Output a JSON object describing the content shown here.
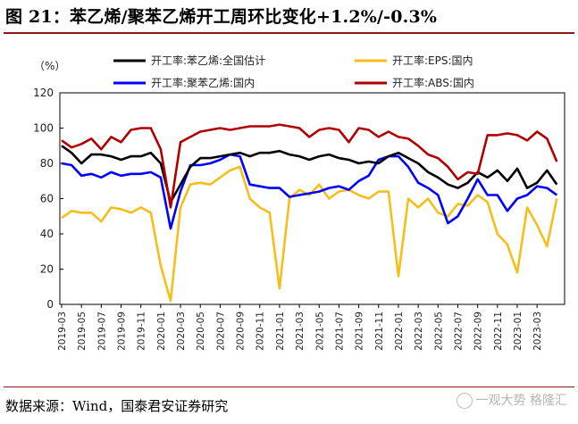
{
  "header": {
    "title": "图 21：苯乙烯/聚苯乙烯开工周环比变化+1.2%/-0.3%"
  },
  "footer": {
    "source": "数据来源：Wind，国泰君安证券研究",
    "watermark": "一观大势  格隆汇"
  },
  "chart_data": {
    "type": "line",
    "title": "图 21：苯乙烯/聚苯乙烯开工周环比变化+1.2%/-0.3%",
    "ylabel": "（%）",
    "xlabel": "",
    "ylim": [
      0,
      120
    ],
    "yticks": [
      "0",
      "20",
      "40",
      "60",
      "80",
      "100",
      "120"
    ],
    "xrange": [
      "2019-03",
      "2023-05"
    ],
    "xticks": [
      "2019-03",
      "2019-05",
      "2019-07",
      "2019-09",
      "2019-11",
      "2020-01",
      "2020-03",
      "2020-05",
      "2020-07",
      "2020-09",
      "2020-11",
      "2021-01",
      "2021-03",
      "2021-05",
      "2021-07",
      "2021-09",
      "2021-11",
      "2022-01",
      "2022-03",
      "2022-05",
      "2022-07",
      "2022-09",
      "2022-11",
      "2023-01",
      "2023-03"
    ],
    "grid": false,
    "legend_position": "top",
    "series": [
      {
        "name": "开工率:苯乙烯:全国估计",
        "color": "#000000",
        "points": [
          [
            "2019-03",
            90
          ],
          [
            "2019-04",
            86
          ],
          [
            "2019-05",
            80
          ],
          [
            "2019-06",
            85
          ],
          [
            "2019-07",
            85
          ],
          [
            "2019-08",
            84
          ],
          [
            "2019-09",
            82
          ],
          [
            "2019-10",
            84
          ],
          [
            "2019-11",
            84
          ],
          [
            "2019-12",
            86
          ],
          [
            "2020-01",
            80
          ],
          [
            "2020-02",
            58
          ],
          [
            "2020-03",
            68
          ],
          [
            "2020-04",
            78
          ],
          [
            "2020-05",
            83
          ],
          [
            "2020-06",
            83
          ],
          [
            "2020-07",
            84
          ],
          [
            "2020-08",
            85
          ],
          [
            "2020-09",
            86
          ],
          [
            "2020-10",
            84
          ],
          [
            "2020-11",
            86
          ],
          [
            "2020-12",
            86
          ],
          [
            "2021-01",
            87
          ],
          [
            "2021-02",
            85
          ],
          [
            "2021-03",
            84
          ],
          [
            "2021-04",
            82
          ],
          [
            "2021-05",
            84
          ],
          [
            "2021-06",
            85
          ],
          [
            "2021-07",
            83
          ],
          [
            "2021-08",
            82
          ],
          [
            "2021-09",
            80
          ],
          [
            "2021-10",
            81
          ],
          [
            "2021-11",
            80
          ],
          [
            "2021-12",
            84
          ],
          [
            "2022-01",
            86
          ],
          [
            "2022-02",
            83
          ],
          [
            "2022-03",
            80
          ],
          [
            "2022-04",
            75
          ],
          [
            "2022-05",
            72
          ],
          [
            "2022-06",
            68
          ],
          [
            "2022-07",
            66
          ],
          [
            "2022-08",
            69
          ],
          [
            "2022-09",
            75
          ],
          [
            "2022-10",
            72
          ],
          [
            "2022-11",
            76
          ],
          [
            "2022-12",
            70
          ],
          [
            "2023-01",
            77
          ],
          [
            "2023-02",
            66
          ],
          [
            "2023-03",
            69
          ],
          [
            "2023-04",
            76
          ],
          [
            "2023-05",
            68
          ]
        ]
      },
      {
        "name": "开工率:EPS:国内",
        "color": "#f4bf1a",
        "points": [
          [
            "2019-03",
            49
          ],
          [
            "2019-04",
            53
          ],
          [
            "2019-05",
            52
          ],
          [
            "2019-06",
            52
          ],
          [
            "2019-07",
            47
          ],
          [
            "2019-08",
            55
          ],
          [
            "2019-09",
            54
          ],
          [
            "2019-10",
            52
          ],
          [
            "2019-11",
            55
          ],
          [
            "2019-12",
            52
          ],
          [
            "2020-01",
            22
          ],
          [
            "2020-02",
            2
          ],
          [
            "2020-03",
            55
          ],
          [
            "2020-04",
            68
          ],
          [
            "2020-05",
            69
          ],
          [
            "2020-06",
            68
          ],
          [
            "2020-07",
            72
          ],
          [
            "2020-08",
            76
          ],
          [
            "2020-09",
            78
          ],
          [
            "2020-10",
            60
          ],
          [
            "2020-11",
            55
          ],
          [
            "2020-12",
            52
          ],
          [
            "2021-01",
            9
          ],
          [
            "2021-02",
            60
          ],
          [
            "2021-03",
            65
          ],
          [
            "2021-04",
            62
          ],
          [
            "2021-05",
            68
          ],
          [
            "2021-06",
            60
          ],
          [
            "2021-07",
            64
          ],
          [
            "2021-08",
            65
          ],
          [
            "2021-09",
            62
          ],
          [
            "2021-10",
            60
          ],
          [
            "2021-11",
            64
          ],
          [
            "2021-12",
            64
          ],
          [
            "2022-01",
            16
          ],
          [
            "2022-02",
            60
          ],
          [
            "2022-03",
            55
          ],
          [
            "2022-04",
            60
          ],
          [
            "2022-05",
            52
          ],
          [
            "2022-06",
            50
          ],
          [
            "2022-07",
            57
          ],
          [
            "2022-08",
            56
          ],
          [
            "2022-09",
            62
          ],
          [
            "2022-10",
            58
          ],
          [
            "2022-11",
            40
          ],
          [
            "2022-12",
            34
          ],
          [
            "2023-01",
            18
          ],
          [
            "2023-02",
            55
          ],
          [
            "2023-03",
            45
          ],
          [
            "2023-04",
            33
          ],
          [
            "2023-05",
            60
          ]
        ]
      },
      {
        "name": "开工率:聚苯乙烯:国内",
        "color": "#0000ff",
        "points": [
          [
            "2019-03",
            80
          ],
          [
            "2019-04",
            79
          ],
          [
            "2019-05",
            73
          ],
          [
            "2019-06",
            74
          ],
          [
            "2019-07",
            72
          ],
          [
            "2019-08",
            75
          ],
          [
            "2019-09",
            73
          ],
          [
            "2019-10",
            74
          ],
          [
            "2019-11",
            74
          ],
          [
            "2019-12",
            75
          ],
          [
            "2020-01",
            72
          ],
          [
            "2020-02",
            43
          ],
          [
            "2020-03",
            64
          ],
          [
            "2020-04",
            79
          ],
          [
            "2020-05",
            79
          ],
          [
            "2020-06",
            80
          ],
          [
            "2020-07",
            82
          ],
          [
            "2020-08",
            85
          ],
          [
            "2020-09",
            84
          ],
          [
            "2020-10",
            68
          ],
          [
            "2020-11",
            67
          ],
          [
            "2020-12",
            66
          ],
          [
            "2021-01",
            66
          ],
          [
            "2021-02",
            61
          ],
          [
            "2021-03",
            62
          ],
          [
            "2021-04",
            63
          ],
          [
            "2021-05",
            64
          ],
          [
            "2021-06",
            66
          ],
          [
            "2021-07",
            67
          ],
          [
            "2021-08",
            65
          ],
          [
            "2021-09",
            70
          ],
          [
            "2021-10",
            73
          ],
          [
            "2021-11",
            82
          ],
          [
            "2021-12",
            84
          ],
          [
            "2022-01",
            84
          ],
          [
            "2022-02",
            78
          ],
          [
            "2022-03",
            69
          ],
          [
            "2022-04",
            66
          ],
          [
            "2022-05",
            62
          ],
          [
            "2022-06",
            46
          ],
          [
            "2022-07",
            50
          ],
          [
            "2022-08",
            60
          ],
          [
            "2022-09",
            71
          ],
          [
            "2022-10",
            62
          ],
          [
            "2022-11",
            62
          ],
          [
            "2022-12",
            53
          ],
          [
            "2023-01",
            60
          ],
          [
            "2023-02",
            62
          ],
          [
            "2023-03",
            67
          ],
          [
            "2023-04",
            66
          ],
          [
            "2023-05",
            62
          ]
        ]
      },
      {
        "name": "开工率:ABS:国内",
        "color": "#b00000",
        "points": [
          [
            "2019-03",
            93
          ],
          [
            "2019-04",
            89
          ],
          [
            "2019-05",
            91
          ],
          [
            "2019-06",
            94
          ],
          [
            "2019-07",
            88
          ],
          [
            "2019-08",
            95
          ],
          [
            "2019-09",
            92
          ],
          [
            "2019-10",
            99
          ],
          [
            "2019-11",
            100
          ],
          [
            "2019-12",
            100
          ],
          [
            "2020-01",
            88
          ],
          [
            "2020-02",
            55
          ],
          [
            "2020-03",
            92
          ],
          [
            "2020-04",
            95
          ],
          [
            "2020-05",
            98
          ],
          [
            "2020-06",
            99
          ],
          [
            "2020-07",
            100
          ],
          [
            "2020-08",
            99
          ],
          [
            "2020-09",
            100
          ],
          [
            "2020-10",
            101
          ],
          [
            "2020-11",
            101
          ],
          [
            "2020-12",
            101
          ],
          [
            "2021-01",
            102
          ],
          [
            "2021-02",
            101
          ],
          [
            "2021-03",
            100
          ],
          [
            "2021-04",
            95
          ],
          [
            "2021-05",
            99
          ],
          [
            "2021-06",
            100
          ],
          [
            "2021-07",
            99
          ],
          [
            "2021-08",
            92
          ],
          [
            "2021-09",
            100
          ],
          [
            "2021-10",
            99
          ],
          [
            "2021-11",
            95
          ],
          [
            "2021-12",
            98
          ],
          [
            "2022-01",
            95
          ],
          [
            "2022-02",
            94
          ],
          [
            "2022-03",
            90
          ],
          [
            "2022-04",
            85
          ],
          [
            "2022-05",
            83
          ],
          [
            "2022-06",
            78
          ],
          [
            "2022-07",
            71
          ],
          [
            "2022-08",
            75
          ],
          [
            "2022-09",
            74
          ],
          [
            "2022-10",
            96
          ],
          [
            "2022-11",
            96
          ],
          [
            "2022-12",
            97
          ],
          [
            "2023-01",
            96
          ],
          [
            "2023-02",
            93
          ],
          [
            "2023-03",
            98
          ],
          [
            "2023-04",
            94
          ],
          [
            "2023-05",
            81
          ]
        ]
      }
    ]
  }
}
